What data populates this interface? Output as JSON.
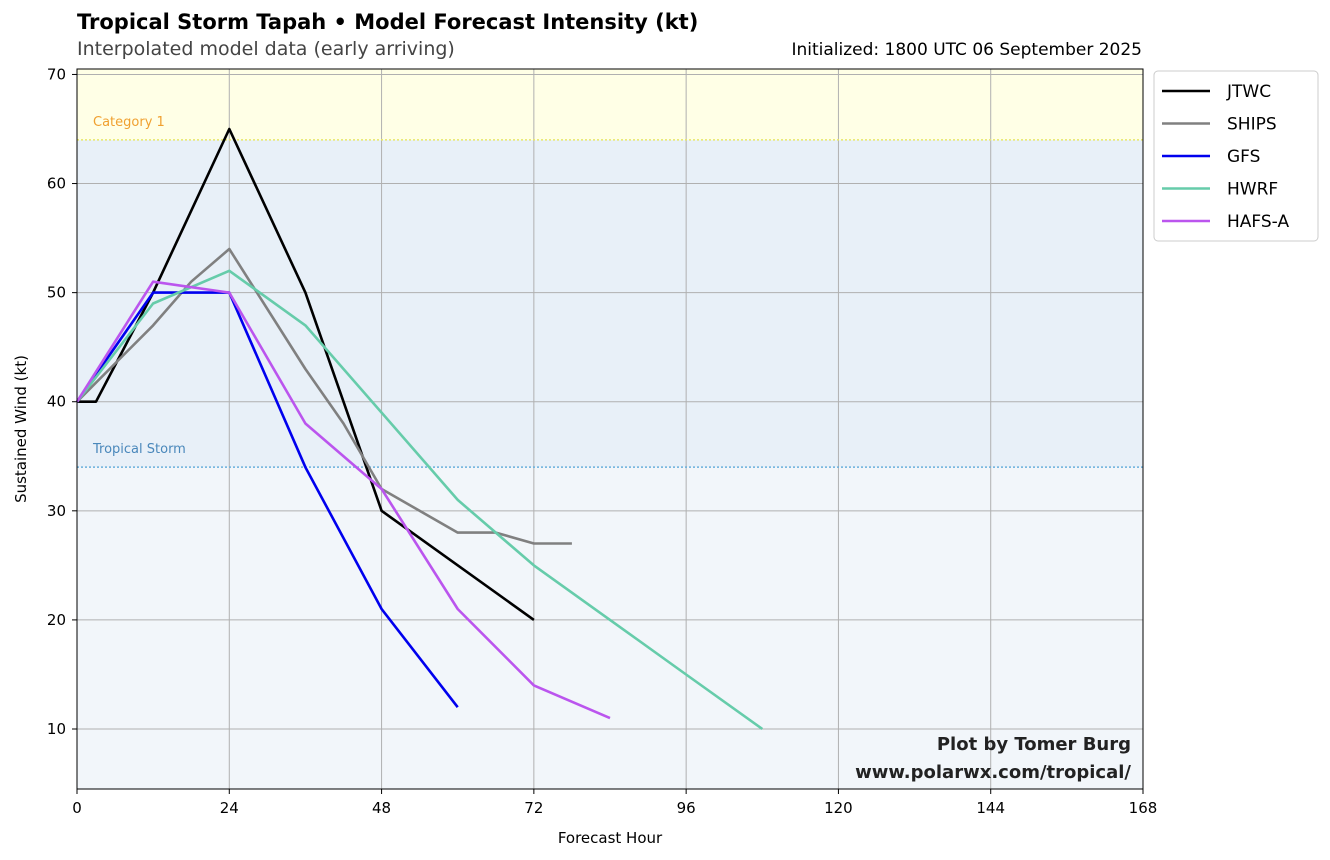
{
  "header": {
    "title": "Tropical Storm Tapah • Model Forecast Intensity (kt)",
    "subtitle": "Interpolated model data (early arriving)",
    "initialized": "Initialized: 1800 UTC 06 September 2025"
  },
  "credit": {
    "line1": "Plot by Tomer Burg",
    "line2": "www.polarwx.com/tropical/"
  },
  "chart_data": {
    "type": "line",
    "xlabel": "Forecast Hour",
    "ylabel": "Sustained Wind (kt)",
    "xlim": [
      0,
      168
    ],
    "ylim": [
      4.5,
      70.5
    ],
    "xticks": [
      0,
      24,
      48,
      72,
      96,
      120,
      144,
      168
    ],
    "yticks": [
      10,
      20,
      30,
      40,
      50,
      60,
      70
    ],
    "grid": true,
    "legend_position": "outside-top-right",
    "bands": [
      {
        "label": "Tropical Storm",
        "from": 34,
        "to": 64,
        "fill": "#e8f0f8",
        "line": "#6ab0dc",
        "label_color": "#4a88bb"
      },
      {
        "label": "Category 1",
        "from": 64,
        "to": 70.5,
        "fill": "#ffffe6",
        "line": "#e8e86a",
        "label_color": "#f0a030"
      }
    ],
    "below_band_fill": "#f2f6fa",
    "series": [
      {
        "name": "JTWC",
        "color": "#000000",
        "x": [
          0,
          3,
          12,
          24,
          36,
          48,
          72
        ],
        "y": [
          40,
          40,
          50,
          65,
          50,
          30,
          20
        ]
      },
      {
        "name": "SHIPS",
        "color": "#808080",
        "x": [
          0,
          12,
          18,
          24,
          36,
          42,
          48,
          60,
          66,
          72,
          78
        ],
        "y": [
          40,
          47,
          51,
          54,
          43,
          38,
          32,
          28,
          28,
          27,
          27
        ]
      },
      {
        "name": "GFS",
        "color": "#0000ee",
        "x": [
          0,
          12,
          24,
          36,
          48,
          60
        ],
        "y": [
          40,
          50,
          50,
          34,
          21,
          12
        ]
      },
      {
        "name": "HWRF",
        "color": "#66ccaa",
        "x": [
          0,
          12,
          24,
          36,
          48,
          60,
          72,
          84,
          96,
          108
        ],
        "y": [
          40,
          49,
          52,
          47,
          39,
          31,
          25,
          20,
          15,
          10
        ]
      },
      {
        "name": "HAFS-A",
        "color": "#bb55ee",
        "x": [
          0,
          12,
          24,
          36,
          48,
          60,
          72,
          84
        ],
        "y": [
          40,
          51,
          50,
          38,
          32,
          21,
          14,
          11
        ]
      }
    ]
  }
}
